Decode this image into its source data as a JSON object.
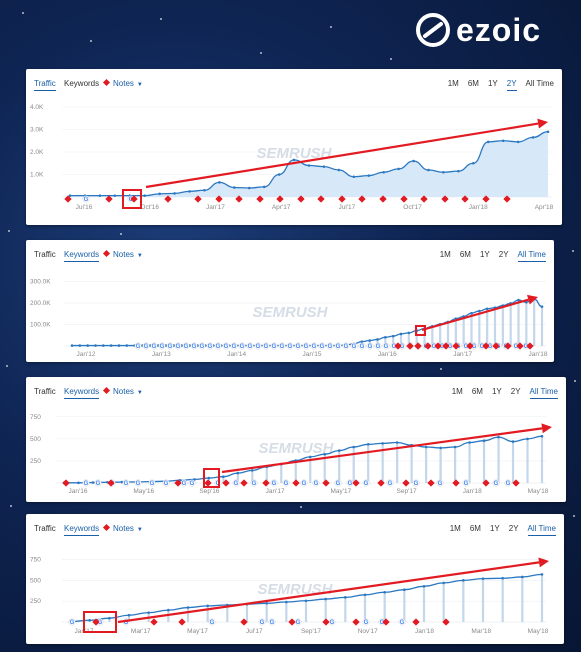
{
  "brand": {
    "name": "ezoic"
  },
  "colors": {
    "line": "#2b78c2",
    "area": "#d7e9f8",
    "note": "#e21b23",
    "arrow": "#e21b23",
    "highlight": "#e21b23",
    "accent": "#1a5fa8"
  },
  "watermark": "SEMRUSH",
  "chart_data": [
    {
      "type": "area",
      "toolbar": {
        "traffic": "Traffic",
        "keywords": "Keywords",
        "notes": "Notes",
        "active_tab": "traffic",
        "ranges": [
          "1M",
          "6M",
          "1Y",
          "2Y",
          "All Time"
        ],
        "active_range": "2Y"
      },
      "yticks": [
        "4.0K",
        "3.0K",
        "2.0K",
        "1.0K"
      ],
      "ylim": [
        0,
        4000
      ],
      "xticks": [
        "Jul'16",
        "Oct'16",
        "Jan'17",
        "Apr'17",
        "Jul'17",
        "Oct'17",
        "Jan'18",
        "Apr'18"
      ],
      "series": [
        {
          "values": [
            60,
            60,
            60,
            60,
            60,
            60,
            140,
            160,
            250,
            300,
            650,
            420,
            400,
            450,
            1000,
            1650,
            1400,
            1350,
            1200,
            900,
            950,
            1100,
            1250,
            1600,
            1200,
            1100,
            1150,
            1500,
            2450,
            2500,
            2450,
            2650,
            2900
          ]
        }
      ]
    },
    {
      "type": "line",
      "toolbar": {
        "traffic": "Traffic",
        "keywords": "Keywords",
        "notes": "Notes",
        "active_tab": "keywords",
        "ranges": [
          "1M",
          "6M",
          "1Y",
          "2Y",
          "All Time"
        ],
        "active_range": "All Time"
      },
      "yticks": [
        "300.0K",
        "200.0K",
        "100.0K"
      ],
      "ylim": [
        0,
        320000
      ],
      "xticks": [
        "Jan'12",
        "Jan'13",
        "Jan'14",
        "Jan'15",
        "Jan'16",
        "Jan'17",
        "Jan'18"
      ],
      "series": [
        {
          "values": [
            2000,
            2000,
            2000,
            2000,
            2000,
            2000,
            2000,
            2000,
            2000,
            2000,
            2000,
            2000,
            2000,
            2000,
            2000,
            2000,
            2000,
            2000,
            2000,
            2000,
            2000,
            2000,
            2000,
            2000,
            2000,
            2000,
            2000,
            2000,
            2000,
            2000,
            2000,
            2000,
            2000,
            2000,
            2000,
            5000,
            10000,
            20000,
            25000,
            30000,
            40000,
            45000,
            55000,
            60000,
            70000,
            80000,
            90000,
            100000,
            110000,
            125000,
            135000,
            150000,
            160000,
            170000,
            175000,
            185000,
            195000,
            210000,
            200000,
            215000,
            180000
          ]
        }
      ]
    },
    {
      "type": "line",
      "toolbar": {
        "traffic": "Traffic",
        "keywords": "Keywords",
        "notes": "Notes",
        "active_tab": "keywords",
        "ranges": [
          "1M",
          "6M",
          "1Y",
          "2Y",
          "All Time"
        ],
        "active_range": "All Time"
      },
      "yticks": [
        "750",
        "500",
        "250"
      ],
      "ylim": [
        0,
        800
      ],
      "xticks": [
        "Jan'16",
        "May'16",
        "Sep'16",
        "Jan'17",
        "May'17",
        "Sep'17",
        "Jan'18",
        "May'18"
      ],
      "series": [
        {
          "values": [
            2,
            2,
            5,
            8,
            10,
            12,
            15,
            20,
            30,
            40,
            55,
            70,
            110,
            140,
            180,
            210,
            250,
            290,
            320,
            360,
            400,
            430,
            440,
            450,
            420,
            400,
            390,
            400,
            450,
            470,
            510,
            460,
            490,
            520
          ]
        }
      ]
    },
    {
      "type": "line",
      "toolbar": {
        "traffic": "Traffic",
        "keywords": "Keywords",
        "notes": "Notes",
        "active_tab": "keywords",
        "ranges": [
          "1M",
          "6M",
          "1Y",
          "2Y",
          "All Time"
        ],
        "active_range": "All Time"
      },
      "yticks": [
        "750",
        "500",
        "250"
      ],
      "ylim": [
        0,
        800
      ],
      "xticks": [
        "Jan'17",
        "Mar'17",
        "May'17",
        "Jul'17",
        "Sep'17",
        "Nov'17",
        "Jan'18",
        "Mar'18",
        "May'18"
      ],
      "series": [
        {
          "values": [
            5,
            20,
            45,
            80,
            110,
            140,
            170,
            190,
            200,
            210,
            220,
            235,
            250,
            270,
            290,
            320,
            350,
            380,
            420,
            460,
            490,
            510,
            515,
            530,
            560
          ]
        }
      ]
    }
  ]
}
